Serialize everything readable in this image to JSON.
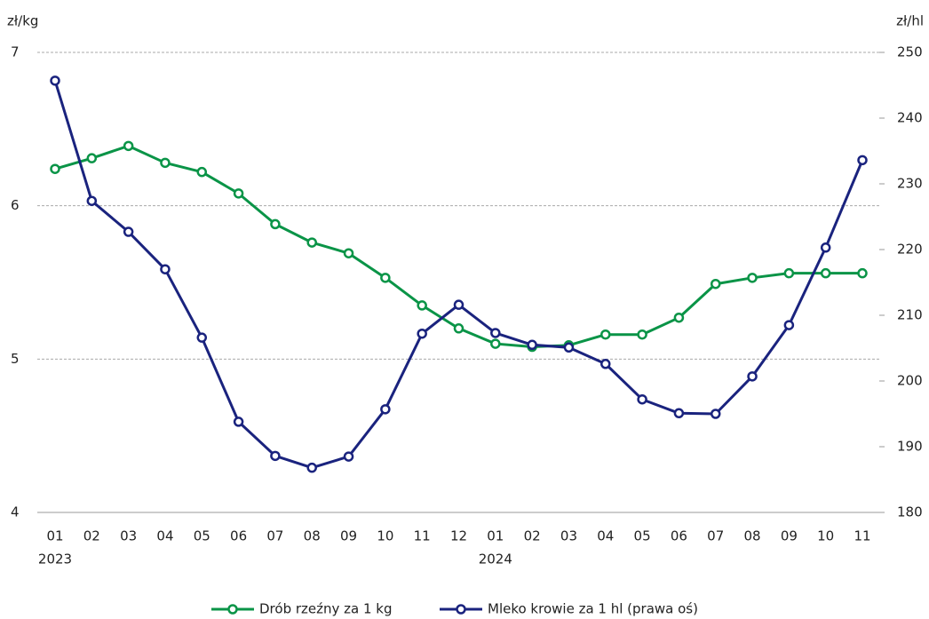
{
  "chart_data": {
    "type": "line",
    "y_label": "zł/kg",
    "y2_label": "zł/hl",
    "categories": [
      "01",
      "02",
      "03",
      "04",
      "05",
      "06",
      "07",
      "08",
      "09",
      "10",
      "11",
      "12",
      "01",
      "02",
      "03",
      "04",
      "05",
      "06",
      "07",
      "08",
      "09",
      "10",
      "11"
    ],
    "category_years": [
      "2023",
      null,
      null,
      null,
      null,
      null,
      null,
      null,
      null,
      null,
      null,
      null,
      "2024",
      null,
      null,
      null,
      null,
      null,
      null,
      null,
      null,
      null,
      null
    ],
    "series": [
      {
        "name": "Drób rzeźny za 1 kg",
        "color": "#0a9447",
        "axis": "y",
        "values": [
          6.24,
          6.31,
          6.39,
          6.28,
          6.22,
          6.08,
          5.88,
          5.76,
          5.69,
          5.53,
          5.35,
          5.2,
          5.1,
          5.08,
          5.09,
          5.16,
          5.16,
          5.27,
          5.49,
          5.53,
          5.56,
          5.56,
          5.56
        ]
      },
      {
        "name": "Mleko krowie za 1 hl (prawa oś)",
        "color": "#1a237e",
        "axis": "y2",
        "values": [
          245.7,
          227.4,
          222.7,
          217.0,
          206.6,
          193.8,
          188.6,
          186.8,
          188.5,
          195.7,
          207.2,
          211.6,
          207.3,
          205.5,
          205.1,
          202.6,
          197.2,
          195.1,
          195.0,
          200.7,
          208.5,
          220.3,
          233.6
        ]
      }
    ],
    "ylim": [
      4,
      7
    ],
    "yticks": [
      4,
      5,
      6,
      7
    ],
    "y2lim": [
      180,
      250
    ],
    "y2ticks": [
      180,
      190,
      200,
      210,
      220,
      230,
      240,
      250
    ],
    "grid": true,
    "legend": "bottom"
  }
}
